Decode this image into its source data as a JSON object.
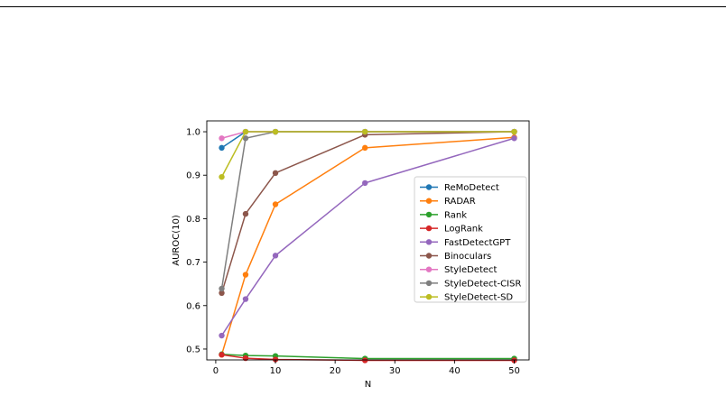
{
  "chart_data": {
    "type": "line",
    "title": "",
    "xlabel": "N",
    "ylabel": "AUROC(10)",
    "xlim": [
      -1.5,
      52.5
    ],
    "ylim": [
      0.475,
      1.025
    ],
    "x": [
      1,
      5,
      10,
      25,
      50
    ],
    "xticks": [
      0,
      10,
      20,
      30,
      40,
      50
    ],
    "yticks": [
      0.5,
      0.6,
      0.7,
      0.8,
      0.9,
      1.0
    ],
    "ytick_labels": [
      "0.5",
      "0.6",
      "0.7",
      "0.8",
      "0.9",
      "1.0"
    ],
    "grid": false,
    "legend": "center-right",
    "series": [
      {
        "name": "ReMoDetect",
        "color": "#1f77b4",
        "values": [
          0.963,
          1.0,
          1.0,
          1.0,
          1.0
        ]
      },
      {
        "name": "RADAR",
        "color": "#ff7f0e",
        "values": [
          0.487,
          0.671,
          0.833,
          0.963,
          0.987
        ]
      },
      {
        "name": "Rank",
        "color": "#2ca02c",
        "values": [
          0.488,
          0.485,
          0.484,
          0.478,
          0.478
        ]
      },
      {
        "name": "LogRank",
        "color": "#d62728",
        "values": [
          0.487,
          0.479,
          0.476,
          0.474,
          0.474
        ]
      },
      {
        "name": "FastDetectGPT",
        "color": "#9467bd",
        "values": [
          0.531,
          0.615,
          0.715,
          0.882,
          0.985
        ]
      },
      {
        "name": "Binoculars",
        "color": "#8c564b",
        "values": [
          0.629,
          0.811,
          0.905,
          0.993,
          1.0
        ]
      },
      {
        "name": "StyleDetect",
        "color": "#e377c2",
        "values": [
          0.985,
          1.0,
          1.0,
          1.0,
          1.0
        ]
      },
      {
        "name": "StyleDetect-CISR",
        "color": "#7f7f7f",
        "values": [
          0.639,
          0.985,
          1.0,
          1.0,
          1.0
        ]
      },
      {
        "name": "StyleDetect-SD",
        "color": "#bcbd22",
        "values": [
          0.896,
          1.0,
          1.0,
          1.0,
          1.0
        ]
      }
    ]
  }
}
